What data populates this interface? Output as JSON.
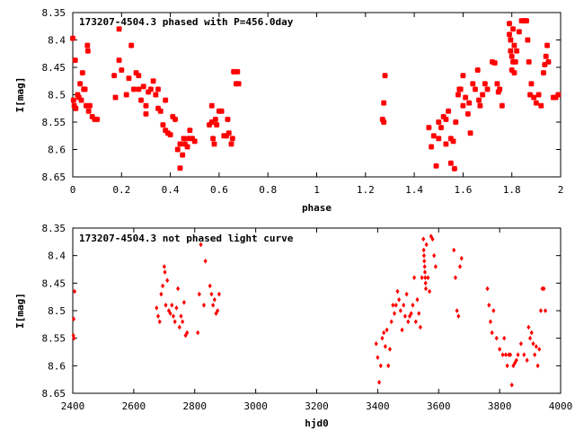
{
  "chart_data": [
    {
      "type": "scatter",
      "title": "173207-4504.3 phased with P=456.0day",
      "xlabel": "phase",
      "ylabel": "I[mag]",
      "xlim": [
        0,
        2
      ],
      "ylim": [
        8.35,
        8.65
      ],
      "y_inverted": true,
      "x_ticks": [
        "0",
        "0.2",
        "0.4",
        "0.6",
        "0.8",
        "1",
        "1.2",
        "1.4",
        "1.6",
        "1.8",
        "2"
      ],
      "x_tick_values": [
        0,
        0.2,
        0.4,
        0.6,
        0.8,
        1.0,
        1.2,
        1.4,
        1.6,
        1.8,
        2.0
      ],
      "y_ticks": [
        "8.35",
        "8.4",
        "8.45",
        "8.5",
        "8.55",
        "8.6",
        "8.65"
      ],
      "y_tick_values": [
        8.35,
        8.4,
        8.45,
        8.5,
        8.55,
        8.6,
        8.65
      ],
      "marker": "cross",
      "color": "#ff0000",
      "points": [
        [
          0.0,
          8.397
        ],
        [
          0.003,
          8.51
        ],
        [
          0.006,
          8.52
        ],
        [
          0.01,
          8.437
        ],
        [
          0.012,
          8.525
        ],
        [
          0.02,
          8.5
        ],
        [
          0.025,
          8.505
        ],
        [
          0.03,
          8.48
        ],
        [
          0.035,
          8.51
        ],
        [
          0.04,
          8.46
        ],
        [
          0.045,
          8.49
        ],
        [
          0.05,
          8.49
        ],
        [
          0.055,
          8.52
        ],
        [
          0.06,
          8.41
        ],
        [
          0.062,
          8.42
        ],
        [
          0.065,
          8.53
        ],
        [
          0.07,
          8.52
        ],
        [
          0.08,
          8.54
        ],
        [
          0.09,
          8.545
        ],
        [
          0.1,
          8.545
        ],
        [
          0.17,
          8.465
        ],
        [
          0.175,
          8.505
        ],
        [
          0.19,
          8.38
        ],
        [
          0.19,
          8.437
        ],
        [
          0.2,
          8.455
        ],
        [
          0.22,
          8.5
        ],
        [
          0.23,
          8.47
        ],
        [
          0.24,
          8.41
        ],
        [
          0.25,
          8.49
        ],
        [
          0.26,
          8.46
        ],
        [
          0.27,
          8.49
        ],
        [
          0.27,
          8.465
        ],
        [
          0.28,
          8.51
        ],
        [
          0.29,
          8.485
        ],
        [
          0.3,
          8.52
        ],
        [
          0.3,
          8.535
        ],
        [
          0.31,
          8.495
        ],
        [
          0.32,
          8.49
        ],
        [
          0.33,
          8.475
        ],
        [
          0.34,
          8.5
        ],
        [
          0.35,
          8.49
        ],
        [
          0.35,
          8.525
        ],
        [
          0.36,
          8.53
        ],
        [
          0.37,
          8.555
        ],
        [
          0.38,
          8.565
        ],
        [
          0.38,
          8.51
        ],
        [
          0.39,
          8.57
        ],
        [
          0.4,
          8.573
        ],
        [
          0.41,
          8.54
        ],
        [
          0.42,
          8.545
        ],
        [
          0.43,
          8.6
        ],
        [
          0.44,
          8.59
        ],
        [
          0.44,
          8.634
        ],
        [
          0.45,
          8.61
        ],
        [
          0.455,
          8.58
        ],
        [
          0.46,
          8.59
        ],
        [
          0.47,
          8.595
        ],
        [
          0.475,
          8.58
        ],
        [
          0.48,
          8.565
        ],
        [
          0.49,
          8.58
        ],
        [
          0.5,
          8.585
        ],
        [
          0.56,
          8.555
        ],
        [
          0.57,
          8.52
        ],
        [
          0.57,
          8.55
        ],
        [
          0.575,
          8.58
        ],
        [
          0.58,
          8.59
        ],
        [
          0.585,
          8.545
        ],
        [
          0.59,
          8.555
        ],
        [
          0.6,
          8.53
        ],
        [
          0.61,
          8.53
        ],
        [
          0.62,
          8.575
        ],
        [
          0.63,
          8.575
        ],
        [
          0.635,
          8.545
        ],
        [
          0.64,
          8.57
        ],
        [
          0.65,
          8.59
        ],
        [
          0.655,
          8.58
        ],
        [
          0.66,
          8.458
        ],
        [
          0.67,
          8.48
        ],
        [
          0.675,
          8.458
        ],
        [
          0.68,
          8.48
        ],
        [
          1.27,
          8.545
        ],
        [
          1.275,
          8.515
        ],
        [
          1.275,
          8.55
        ],
        [
          1.28,
          8.465
        ],
        [
          1.46,
          8.56
        ],
        [
          1.47,
          8.595
        ],
        [
          1.48,
          8.575
        ],
        [
          1.49,
          8.63
        ],
        [
          1.5,
          8.58
        ],
        [
          1.5,
          8.55
        ],
        [
          1.51,
          8.56
        ],
        [
          1.52,
          8.54
        ],
        [
          1.53,
          8.59
        ],
        [
          1.53,
          8.545
        ],
        [
          1.54,
          8.53
        ],
        [
          1.55,
          8.625
        ],
        [
          1.55,
          8.58
        ],
        [
          1.56,
          8.585
        ],
        [
          1.565,
          8.635
        ],
        [
          1.57,
          8.55
        ],
        [
          1.58,
          8.5
        ],
        [
          1.585,
          8.49
        ],
        [
          1.59,
          8.49
        ],
        [
          1.6,
          8.465
        ],
        [
          1.6,
          8.52
        ],
        [
          1.61,
          8.505
        ],
        [
          1.62,
          8.535
        ],
        [
          1.625,
          8.515
        ],
        [
          1.63,
          8.57
        ],
        [
          1.64,
          8.48
        ],
        [
          1.65,
          8.49
        ],
        [
          1.66,
          8.455
        ],
        [
          1.665,
          8.51
        ],
        [
          1.67,
          8.52
        ],
        [
          1.68,
          8.5
        ],
        [
          1.69,
          8.48
        ],
        [
          1.7,
          8.49
        ],
        [
          1.72,
          8.44
        ],
        [
          1.73,
          8.442
        ],
        [
          1.74,
          8.48
        ],
        [
          1.745,
          8.495
        ],
        [
          1.75,
          8.49
        ],
        [
          1.76,
          8.52
        ],
        [
          1.79,
          8.37
        ],
        [
          1.79,
          8.39
        ],
        [
          1.795,
          8.4
        ],
        [
          1.795,
          8.42
        ],
        [
          1.8,
          8.43
        ],
        [
          1.8,
          8.455
        ],
        [
          1.805,
          8.38
        ],
        [
          1.805,
          8.44
        ],
        [
          1.81,
          8.46
        ],
        [
          1.81,
          8.41
        ],
        [
          1.815,
          8.44
        ],
        [
          1.82,
          8.42
        ],
        [
          1.83,
          8.385
        ],
        [
          1.84,
          8.365
        ],
        [
          1.85,
          8.365
        ],
        [
          1.86,
          8.365
        ],
        [
          1.865,
          8.4
        ],
        [
          1.87,
          8.44
        ],
        [
          1.875,
          8.5
        ],
        [
          1.88,
          8.48
        ],
        [
          1.89,
          8.505
        ],
        [
          1.9,
          8.515
        ],
        [
          1.91,
          8.5
        ],
        [
          1.92,
          8.52
        ],
        [
          1.93,
          8.46
        ],
        [
          1.935,
          8.445
        ],
        [
          1.94,
          8.43
        ],
        [
          1.945,
          8.41
        ],
        [
          1.95,
          8.44
        ],
        [
          1.97,
          8.505
        ],
        [
          1.98,
          8.505
        ],
        [
          1.99,
          8.5
        ]
      ]
    },
    {
      "type": "scatter",
      "title": "173207-4504.3 not phased light curve",
      "xlabel": "hjd0",
      "ylabel": "I[mag]",
      "xlim": [
        2400,
        4000
      ],
      "ylim": [
        8.35,
        8.65
      ],
      "y_inverted": true,
      "x_ticks": [
        "2400",
        "2600",
        "2800",
        "3000",
        "3200",
        "3400",
        "3600",
        "3800",
        "4000"
      ],
      "x_tick_values": [
        2400,
        2600,
        2800,
        3000,
        3200,
        3400,
        3600,
        3800,
        4000
      ],
      "y_ticks": [
        "8.35",
        "8.4",
        "8.45",
        "8.5",
        "8.55",
        "8.6",
        "8.65"
      ],
      "y_tick_values": [
        8.35,
        8.4,
        8.45,
        8.5,
        8.55,
        8.6,
        8.65
      ],
      "marker": "diamond",
      "color": "#ff0000",
      "points": [
        [
          2402,
          8.545
        ],
        [
          2403,
          8.515
        ],
        [
          2404,
          8.55
        ],
        [
          2406,
          8.465
        ],
        [
          2675,
          8.495
        ],
        [
          2680,
          8.51
        ],
        [
          2685,
          8.52
        ],
        [
          2690,
          8.47
        ],
        [
          2695,
          8.455
        ],
        [
          2700,
          8.42
        ],
        [
          2702,
          8.43
        ],
        [
          2705,
          8.49
        ],
        [
          2710,
          8.445
        ],
        [
          2715,
          8.5
        ],
        [
          2720,
          8.505
        ],
        [
          2725,
          8.49
        ],
        [
          2730,
          8.51
        ],
        [
          2735,
          8.52
        ],
        [
          2740,
          8.495
        ],
        [
          2745,
          8.46
        ],
        [
          2750,
          8.53
        ],
        [
          2755,
          8.51
        ],
        [
          2760,
          8.52
        ],
        [
          2765,
          8.485
        ],
        [
          2770,
          8.545
        ],
        [
          2775,
          8.54
        ],
        [
          2810,
          8.54
        ],
        [
          2815,
          8.47
        ],
        [
          2820,
          8.38
        ],
        [
          2830,
          8.49
        ],
        [
          2835,
          8.41
        ],
        [
          2850,
          8.455
        ],
        [
          2855,
          8.47
        ],
        [
          2860,
          8.49
        ],
        [
          2865,
          8.48
        ],
        [
          2870,
          8.505
        ],
        [
          2875,
          8.5
        ],
        [
          2880,
          8.47
        ],
        [
          3395,
          8.56
        ],
        [
          3400,
          8.585
        ],
        [
          3405,
          8.63
        ],
        [
          3410,
          8.6
        ],
        [
          3415,
          8.55
        ],
        [
          3420,
          8.54
        ],
        [
          3425,
          8.565
        ],
        [
          3430,
          8.535
        ],
        [
          3435,
          8.6
        ],
        [
          3440,
          8.57
        ],
        [
          3445,
          8.52
        ],
        [
          3450,
          8.49
        ],
        [
          3455,
          8.505
        ],
        [
          3460,
          8.49
        ],
        [
          3465,
          8.465
        ],
        [
          3470,
          8.48
        ],
        [
          3475,
          8.5
        ],
        [
          3480,
          8.535
        ],
        [
          3485,
          8.49
        ],
        [
          3490,
          8.51
        ],
        [
          3495,
          8.47
        ],
        [
          3500,
          8.52
        ],
        [
          3505,
          8.51
        ],
        [
          3510,
          8.505
        ],
        [
          3515,
          8.49
        ],
        [
          3520,
          8.44
        ],
        [
          3525,
          8.52
        ],
        [
          3530,
          8.48
        ],
        [
          3535,
          8.505
        ],
        [
          3540,
          8.53
        ],
        [
          3545,
          8.44
        ],
        [
          3550,
          8.37
        ],
        [
          3551,
          8.39
        ],
        [
          3552,
          8.4
        ],
        [
          3553,
          8.41
        ],
        [
          3554,
          8.42
        ],
        [
          3555,
          8.43
        ],
        [
          3556,
          8.44
        ],
        [
          3557,
          8.45
        ],
        [
          3558,
          8.46
        ],
        [
          3560,
          8.38
        ],
        [
          3565,
          8.44
        ],
        [
          3570,
          8.465
        ],
        [
          3575,
          8.365
        ],
        [
          3580,
          8.37
        ],
        [
          3585,
          8.4
        ],
        [
          3590,
          8.42
        ],
        [
          3650,
          8.39
        ],
        [
          3655,
          8.44
        ],
        [
          3660,
          8.5
        ],
        [
          3665,
          8.51
        ],
        [
          3670,
          8.42
        ],
        [
          3675,
          8.405
        ],
        [
          3760,
          8.46
        ],
        [
          3765,
          8.49
        ],
        [
          3770,
          8.52
        ],
        [
          3775,
          8.54
        ],
        [
          3780,
          8.5
        ],
        [
          3790,
          8.55
        ],
        [
          3800,
          8.57
        ],
        [
          3810,
          8.58
        ],
        [
          3815,
          8.55
        ],
        [
          3820,
          8.58
        ],
        [
          3825,
          8.6
        ],
        [
          3830,
          8.58
        ],
        [
          3835,
          8.58
        ],
        [
          3840,
          8.635
        ],
        [
          3845,
          8.6
        ],
        [
          3850,
          8.595
        ],
        [
          3855,
          8.59
        ],
        [
          3860,
          8.58
        ],
        [
          3870,
          8.56
        ],
        [
          3880,
          8.58
        ],
        [
          3890,
          8.59
        ],
        [
          3895,
          8.53
        ],
        [
          3900,
          8.55
        ],
        [
          3905,
          8.54
        ],
        [
          3910,
          8.56
        ],
        [
          3915,
          8.58
        ],
        [
          3920,
          8.565
        ],
        [
          3925,
          8.6
        ],
        [
          3930,
          8.57
        ],
        [
          3935,
          8.5
        ],
        [
          3940,
          8.46
        ],
        [
          3945,
          8.46
        ],
        [
          3950,
          8.5
        ]
      ]
    }
  ]
}
